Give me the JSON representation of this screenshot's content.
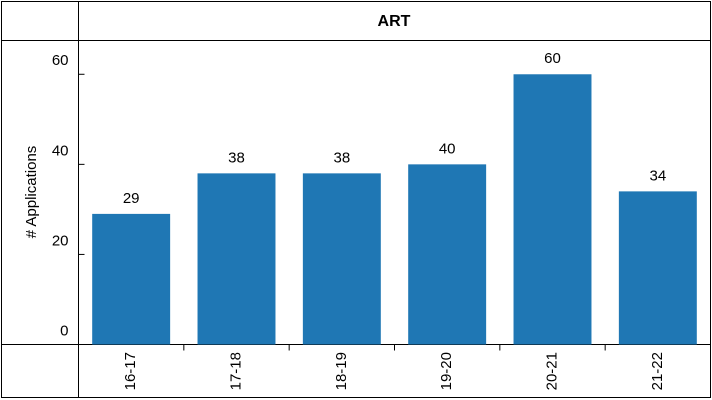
{
  "chart_data": {
    "type": "bar",
    "title": "ART",
    "y_label": "# Applications",
    "categories": [
      "16-17",
      "17-18",
      "18-19",
      "19-20",
      "20-21",
      "21-22"
    ],
    "values": [
      29,
      38,
      38,
      40,
      60,
      34
    ],
    "color": "#1f77b4",
    "ylim": [
      0,
      67.5
    ],
    "yticks": [
      0,
      20,
      40,
      60
    ]
  }
}
